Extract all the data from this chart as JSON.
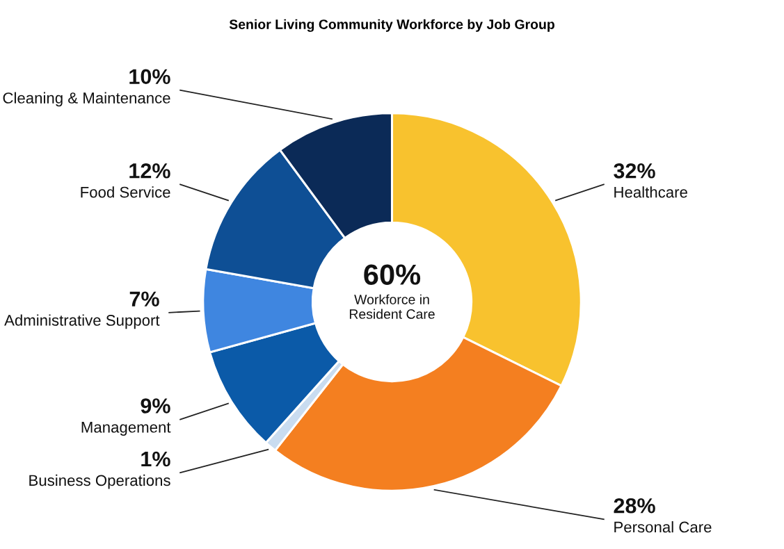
{
  "chart_data": {
    "type": "donut",
    "title": "Senior Living Community Workforce by Job Group",
    "categories": [
      "Healthcare",
      "Personal Care",
      "Business Operations",
      "Management",
      "Administrative Support",
      "Food Service",
      "Cleaning & Maintenance"
    ],
    "values": [
      32,
      28,
      1,
      9,
      7,
      12,
      10
    ],
    "value_labels": [
      "32%",
      "28%",
      "1%",
      "9%",
      "7%",
      "12%",
      "10%"
    ],
    "colors": [
      "#f8c22e",
      "#f47f20",
      "#c9dcf0",
      "#0b5aa8",
      "#3f86e0",
      "#0e4f95",
      "#0b2a57"
    ],
    "annotations": [
      "60%",
      "Workforce in\nResident Care"
    ]
  }
}
